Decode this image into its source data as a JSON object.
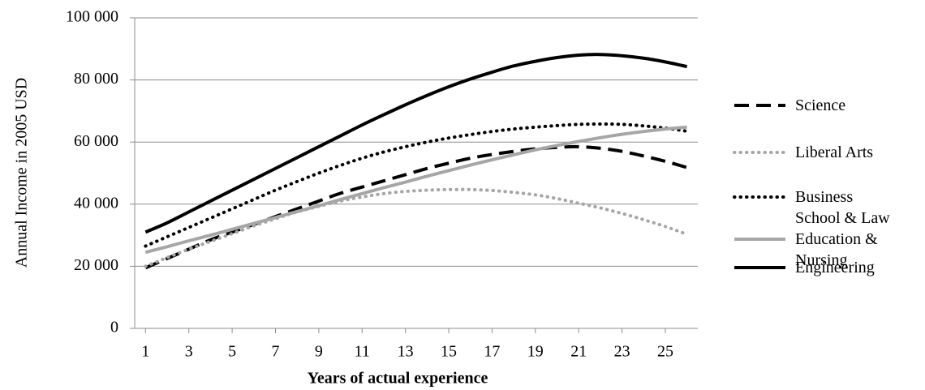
{
  "chart_data": {
    "type": "line",
    "x_label": "Years of actual experience",
    "y_label": "Annual Income in 2005 USD",
    "x": [
      1,
      2,
      3,
      4,
      5,
      6,
      7,
      8,
      9,
      10,
      11,
      12,
      13,
      14,
      15,
      16,
      17,
      18,
      19,
      20,
      21,
      22,
      23,
      24,
      25,
      26
    ],
    "xlim": [
      0.5,
      26.5
    ],
    "xticks": [
      1,
      3,
      5,
      7,
      9,
      11,
      13,
      15,
      17,
      19,
      21,
      23,
      25
    ],
    "ylim": [
      0,
      100000
    ],
    "yticks": [
      0,
      {
        "value": 20000,
        "label": "20 000"
      },
      {
        "value": 40000,
        "label": "40 000"
      },
      {
        "value": 60000,
        "label": "60 000"
      },
      {
        "value": 80000,
        "label": "80 000"
      },
      {
        "value": 100000,
        "label": "100 000"
      }
    ],
    "grid": true,
    "legend": "right",
    "series": [
      {
        "name": "Science",
        "color": "#000000",
        "style": "dashed",
        "values": [
          19500,
          22500,
          25500,
          28500,
          31000,
          33500,
          36000,
          38500,
          41000,
          43500,
          45500,
          47500,
          49500,
          51500,
          53200,
          54800,
          56000,
          57000,
          57800,
          58300,
          58500,
          58000,
          57000,
          55500,
          53800,
          51800
        ]
      },
      {
        "name": "Liberal Arts",
        "color": "#a6a6a6",
        "style": "dotted",
        "values": [
          20000,
          22800,
          25500,
          28000,
          30500,
          33000,
          35300,
          37500,
          39300,
          41000,
          42300,
          43400,
          44100,
          44500,
          44700,
          44700,
          44400,
          43800,
          43000,
          41800,
          40300,
          38800,
          37000,
          35000,
          32800,
          30300
        ]
      },
      {
        "name": "Business School & Law",
        "color": "#000000",
        "style": "dotted",
        "values": [
          26500,
          29500,
          32500,
          35500,
          38500,
          41500,
          44500,
          47300,
          50000,
          52500,
          54800,
          56800,
          58500,
          60000,
          61300,
          62400,
          63400,
          64200,
          64800,
          65300,
          65700,
          65800,
          65700,
          65200,
          64500,
          63500
        ]
      },
      {
        "name": "Education & Nursing",
        "color": "#a6a6a6",
        "style": "solid",
        "values": [
          24500,
          26300,
          28200,
          30000,
          31900,
          33800,
          35700,
          37600,
          39500,
          41500,
          43400,
          45300,
          47100,
          49000,
          50800,
          52600,
          54300,
          55900,
          57500,
          58900,
          60200,
          61400,
          62500,
          63400,
          64200,
          64800
        ]
      },
      {
        "name": "Engineering",
        "color": "#000000",
        "style": "solid",
        "values": [
          31000,
          34000,
          37500,
          41000,
          44500,
          48000,
          51500,
          55000,
          58500,
          62000,
          65500,
          68800,
          72000,
          75000,
          77800,
          80300,
          82500,
          84500,
          86000,
          87200,
          88000,
          88200,
          87800,
          87000,
          85800,
          84300
        ]
      }
    ]
  }
}
